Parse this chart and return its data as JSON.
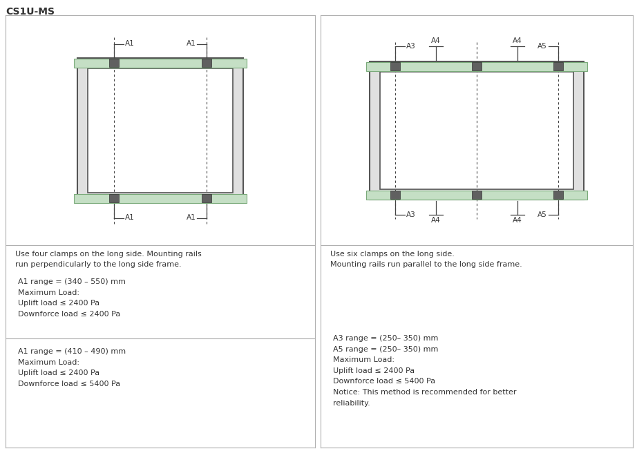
{
  "title": "CS1U-MS",
  "title_fontsize": 10,
  "title_fontweight": "bold",
  "bg_color": "#ffffff",
  "border_color": "#b0b0b0",
  "panel_frame_color": "#555555",
  "panel_fill_color": "#e0e0e0",
  "inner_fill_color": "#ffffff",
  "rail_fill_color": "#c5dfc5",
  "rail_edge_color": "#7aaa7a",
  "clamp_fill_color": "#606060",
  "clamp_edge_color": "#333333",
  "dim_line_color": "#444444",
  "dashed_color": "#444444",
  "text_color": "#333333",
  "left_desc": "Use four clamps on the long side. Mounting rails\nrun perpendicularly to the long side frame.",
  "right_desc": "Use six clamps on the long side.\nMounting rails run parallel to the long side frame.",
  "left_text_box1": "A1 range = (340 – 550) mm\nMaximum Load:\nUplift load ≤ 2400 Pa\nDownforce load ≤ 2400 Pa",
  "left_text_box2": "A1 range = (410 – 490) mm\nMaximum Load:\nUplift load ≤ 2400 Pa\nDownforce load ≤ 5400 Pa",
  "right_text_box": "A3 range = (250– 350) mm\nA5 range = (250– 350) mm\nMaximum Load:\nUplift load ≤ 2400 Pa\nDownforce load ≤ 5400 Pa\nNotice: This method is recommended for better\nreliability.",
  "font_size_body": 8.0,
  "font_size_label": 7.5,
  "font_size_title": 10
}
